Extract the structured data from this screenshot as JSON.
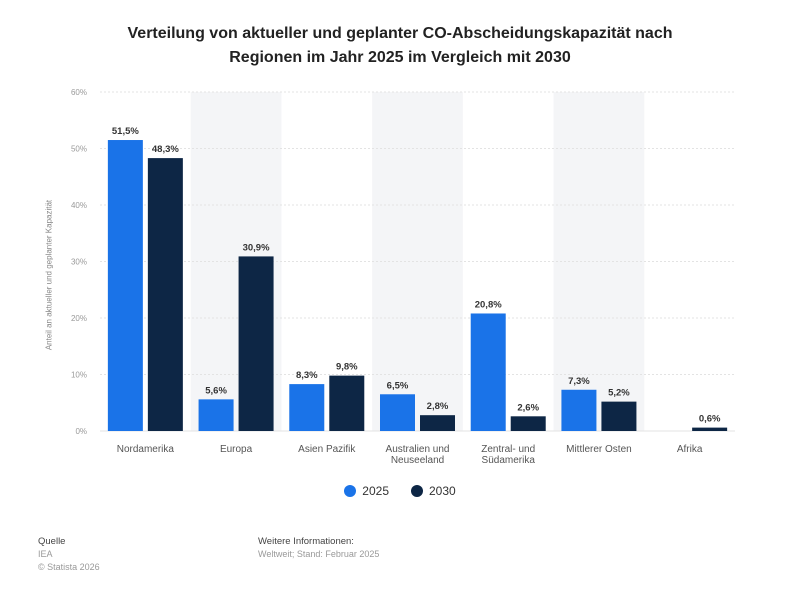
{
  "chart_data": {
    "type": "bar",
    "title_line1": "Verteilung von aktueller und geplanter CO-Abscheidungskapazität nach",
    "title_line2": "Regionen im Jahr 2025 im Vergleich mit 2030",
    "ylabel": "Anteil an aktueller und geplanter Kapazität",
    "ylim": [
      0,
      60
    ],
    "yticks": [
      "0%",
      "10%",
      "20%",
      "30%",
      "40%",
      "50%",
      "60%"
    ],
    "categories": [
      [
        "Nordamerika"
      ],
      [
        "Europa"
      ],
      [
        "Asien Pazifik"
      ],
      [
        "Australien und",
        "Neuseeland"
      ],
      [
        "Zentral- und",
        "Südamerika"
      ],
      [
        "Mittlerer Osten"
      ],
      [
        "Afrika"
      ]
    ],
    "series": [
      {
        "name": "2025",
        "color": "#1a73e8",
        "values": [
          51.5,
          5.6,
          8.3,
          6.5,
          20.8,
          7.3,
          null
        ],
        "labels": [
          "51,5%",
          "5,6%",
          "8,3%",
          "6,5%",
          "20,8%",
          "7,3%",
          ""
        ]
      },
      {
        "name": "2030",
        "color": "#0d2645",
        "values": [
          48.3,
          30.9,
          9.8,
          2.8,
          2.6,
          5.2,
          0.6
        ],
        "labels": [
          "48,3%",
          "30,9%",
          "9,8%",
          "2,8%",
          "2,6%",
          "5,2%",
          "0,6%"
        ]
      }
    ],
    "grid": true,
    "legend_position": "bottom-center"
  },
  "footer": {
    "source_label": "Quelle",
    "source_value": "IEA",
    "copyright": "© Statista 2026",
    "info_label": "Weitere Informationen:",
    "info_value": "Weltweit; Stand: Februar 2025"
  }
}
